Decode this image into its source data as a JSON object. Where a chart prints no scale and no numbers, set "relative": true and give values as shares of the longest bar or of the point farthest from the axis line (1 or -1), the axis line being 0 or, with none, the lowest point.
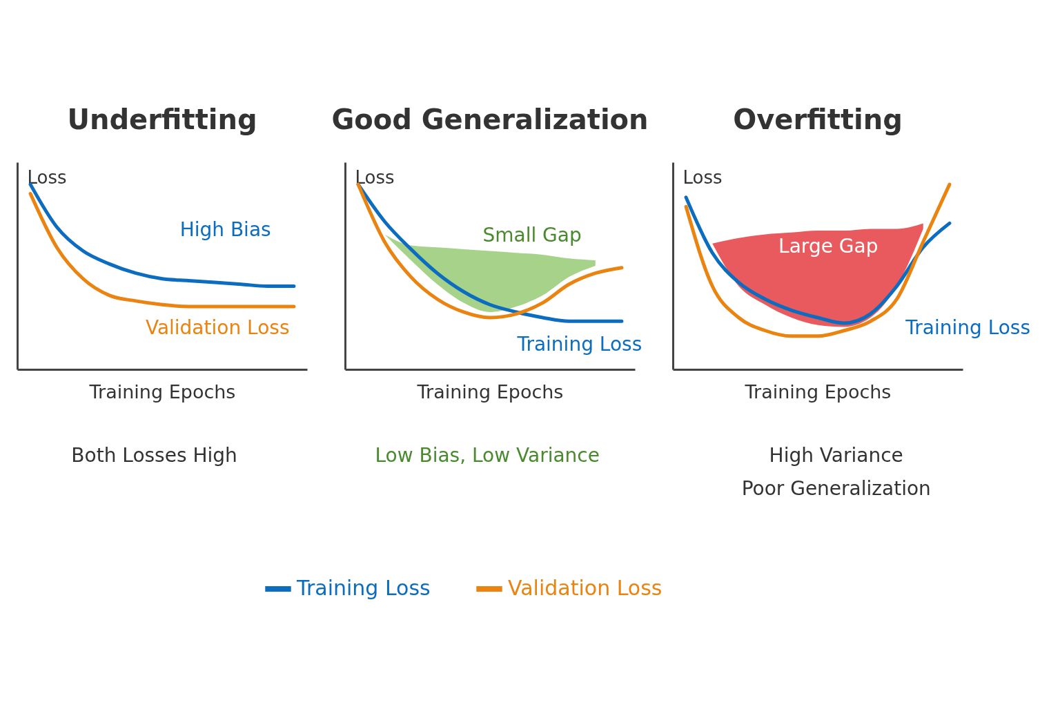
{
  "chart_data": [
    {
      "type": "line",
      "title": "Underfitting",
      "xlabel": "Training Epochs",
      "ylabel": "Loss",
      "relative": true,
      "legend": "bottom",
      "categories": [
        null,
        null,
        null,
        null,
        null,
        null,
        null,
        null,
        null,
        null,
        null
      ],
      "series": [
        {
          "name": "Training Loss",
          "color": "#0b6cc0",
          "values": [
            1,
            0.77,
            0.64,
            0.57,
            0.52,
            0.49,
            0.48,
            0.47,
            0.46,
            0.45,
            0.45
          ]
        },
        {
          "name": "Validation Loss",
          "color": "#ea830f",
          "values": [
            0.95,
            0.66,
            0.49,
            0.4,
            0.37,
            0.35,
            0.34,
            0.34,
            0.34,
            0.34,
            0.34
          ]
        }
      ],
      "annotations": [
        "High Bias",
        "Validation Loss",
        "Both Losses High"
      ]
    },
    {
      "type": "line",
      "title": "Good Generalization",
      "xlabel": "Training Epochs",
      "ylabel": "Loss",
      "relative": true,
      "categories": [
        null,
        null,
        null,
        null,
        null,
        null,
        null,
        null,
        null,
        null,
        null
      ],
      "series": [
        {
          "name": "Training Loss",
          "color": "#0b6cc0",
          "values": [
            1,
            0.8,
            0.65,
            0.52,
            0.42,
            0.35,
            0.31,
            0.28,
            0.26,
            0.26,
            0.26
          ],
          "upper": [
            null,
            0.73,
            0.67,
            0.66,
            0.65,
            0.64,
            0.63,
            0.62,
            0.6,
            0.59,
            null
          ],
          "lower": [
            null,
            0.73,
            0.59,
            0.46,
            0.36,
            0.31,
            0.34,
            0.4,
            0.5,
            0.56,
            null
          ]
        },
        {
          "color": "#ea830f",
          "values": [
            1,
            0.69,
            0.5,
            0.38,
            0.31,
            0.28,
            0.3,
            0.36,
            0.46,
            0.52,
            0.55
          ]
        }
      ],
      "annotations": [
        "Small Gap",
        "Low Bias, Low Variance"
      ]
    },
    {
      "type": "line",
      "title": "Overfitting",
      "xlabel": "Training Epochs",
      "ylabel": "Loss",
      "relative": true,
      "categories": [
        null,
        null,
        null,
        null,
        null,
        null,
        null,
        null,
        null,
        null,
        null
      ],
      "series": [
        {
          "name": "Training Loss",
          "color": "#0b6cc0",
          "values": [
            0.93,
            0.63,
            0.47,
            0.38,
            0.32,
            0.28,
            0.25,
            0.3,
            0.45,
            0.66,
            0.79
          ],
          "upper": [
            null,
            0.68,
            0.71,
            0.73,
            0.74,
            0.75,
            0.75,
            0.76,
            0.76,
            0.79,
            null
          ],
          "lower": [
            null,
            0.68,
            0.45,
            0.35,
            0.28,
            0.24,
            0.23,
            0.28,
            0.45,
            0.76,
            null
          ]
        },
        {
          "color": "#ea830f",
          "values": [
            0.88,
            0.45,
            0.28,
            0.21,
            0.18,
            0.18,
            0.21,
            0.26,
            0.38,
            0.69,
            1
          ]
        }
      ],
      "annotations": [
        "Large Gap",
        "High Variance\nPoor Generalization"
      ]
    }
  ]
}
